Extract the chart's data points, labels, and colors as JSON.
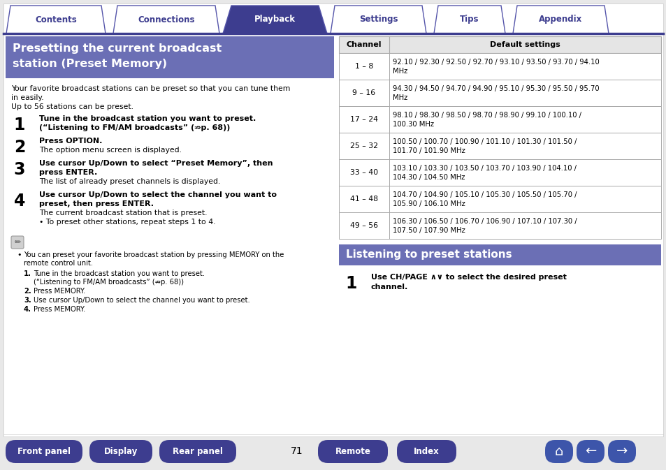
{
  "bg_color": "#e8e8e8",
  "page_bg": "#ffffff",
  "tab_labels": [
    "Contents",
    "Connections",
    "Playback",
    "Settings",
    "Tips",
    "Appendix"
  ],
  "tab_active": 2,
  "tab_active_color": "#3d3d8f",
  "tab_inactive_color": "#ffffff",
  "tab_text_color_active": "#ffffff",
  "tab_text_color_inactive": "#3d3d8f",
  "tab_border_color": "#5555aa",
  "header_bg": "#6b6fb5",
  "header_text_color": "#ffffff",
  "left_header_line1": "Presetting the current broadcast",
  "left_header_line2": "station (Preset Memory)",
  "intro_lines": [
    "Your favorite broadcast stations can be preset so that you can tune them",
    "in easily.",
    "Up to 56 stations can be preset."
  ],
  "steps": [
    {
      "num": "1",
      "bold_lines": [
        "Tune in the broadcast station you want to preset.",
        "(“Listening to FM/AM broadcasts” (⇏p. 68))"
      ],
      "normal_lines": []
    },
    {
      "num": "2",
      "bold_lines": [
        "Press OPTION."
      ],
      "normal_lines": [
        "The option menu screen is displayed."
      ]
    },
    {
      "num": "3",
      "bold_lines": [
        "Use cursor Up/Down to select “Preset Memory”, then",
        "press ENTER."
      ],
      "normal_lines": [
        "The list of already preset channels is displayed."
      ]
    },
    {
      "num": "4",
      "bold_lines": [
        "Use cursor Up/Down to select the channel you want to",
        "preset, then press ENTER."
      ],
      "normal_lines": [
        "The current broadcast station that is preset.",
        "• To preset other stations, repeat steps 1 to 4."
      ]
    }
  ],
  "note_bullet": [
    "You can preset your favorite broadcast station by pressing MEMORY on the",
    "remote control unit."
  ],
  "note_list": [
    [
      "Tune in the broadcast station you want to preset.",
      "(“Listening to FM/AM broadcasts” (⇏p. 68))"
    ],
    [
      "Press MEMORY."
    ],
    [
      "Use cursor Up/Down to select the channel you want to preset."
    ],
    [
      "Press MEMORY."
    ]
  ],
  "table_header_ch": "Channel",
  "table_header_def": "Default settings",
  "table_rows": [
    [
      "1 – 8",
      "92.10 / 92.30 / 92.50 / 92.70 / 93.10 / 93.50 / 93.70 / 94.10",
      "MHz"
    ],
    [
      "9 – 16",
      "94.30 / 94.50 / 94.70 / 94.90 / 95.10 / 95.30 / 95.50 / 95.70",
      "MHz"
    ],
    [
      "17 – 24",
      "98.10 / 98.30 / 98.50 / 98.70 / 98.90 / 99.10 / 100.10 /",
      "100.30 MHz"
    ],
    [
      "25 – 32",
      "100.50 / 100.70 / 100.90 / 101.10 / 101.30 / 101.50 /",
      "101.70 / 101.90 MHz"
    ],
    [
      "33 – 40",
      "103.10 / 103.30 / 103.50 / 103.70 / 103.90 / 104.10 /",
      "104.30 / 104.50 MHz"
    ],
    [
      "41 – 48",
      "104.70 / 104.90 / 105.10 / 105.30 / 105.50 / 105.70 /",
      "105.90 / 106.10 MHz"
    ],
    [
      "49 – 56",
      "106.30 / 106.50 / 106.70 / 106.90 / 107.10 / 107.30 /",
      "107.50 / 107.90 MHz"
    ]
  ],
  "right_header": "Listening to preset stations",
  "right_step1_lines": [
    "Use CH/PAGE ∧∨ to select the desired preset",
    "channel."
  ],
  "nav_buttons_left": [
    "Front panel",
    "Display",
    "Rear panel"
  ],
  "nav_buttons_right": [
    "Remote",
    "Index"
  ],
  "nav_button_color": "#3d3d8f",
  "page_number": "71",
  "divider_color": "#3d3d8f"
}
